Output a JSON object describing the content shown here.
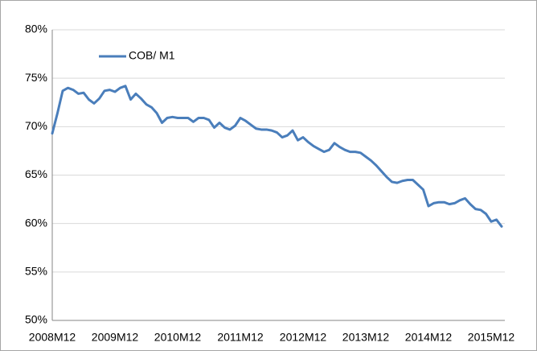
{
  "chart_data": {
    "type": "line",
    "categories": [
      "2008M12",
      null,
      null,
      null,
      null,
      null,
      null,
      null,
      null,
      null,
      null,
      null,
      "2009M12",
      null,
      null,
      null,
      null,
      null,
      null,
      null,
      null,
      null,
      null,
      null,
      "2010M12",
      null,
      null,
      null,
      null,
      null,
      null,
      null,
      null,
      null,
      null,
      null,
      "2011M12",
      null,
      null,
      null,
      null,
      null,
      null,
      null,
      null,
      null,
      null,
      null,
      "2012M12",
      null,
      null,
      null,
      null,
      null,
      null,
      null,
      null,
      null,
      null,
      null,
      "2013M12",
      null,
      null,
      null,
      null,
      null,
      null,
      null,
      null,
      null,
      null,
      null,
      "2014M12",
      null,
      null,
      null,
      null,
      null,
      null,
      null,
      null,
      null,
      null,
      null,
      "2015M12",
      null,
      null
    ],
    "series": [
      {
        "name": "COB/ M1",
        "color": "#4a7ebb",
        "values": [
          69.3,
          71.4,
          73.7,
          74.0,
          73.8,
          73.4,
          73.5,
          72.8,
          72.4,
          72.9,
          73.7,
          73.8,
          73.6,
          74.0,
          74.2,
          72.8,
          73.4,
          72.9,
          72.3,
          72.0,
          71.4,
          70.4,
          70.9,
          71.0,
          70.9,
          70.9,
          70.9,
          70.5,
          70.9,
          70.9,
          70.7,
          69.9,
          70.4,
          69.9,
          69.7,
          70.1,
          70.9,
          70.6,
          70.2,
          69.8,
          69.7,
          69.7,
          69.6,
          69.4,
          68.9,
          69.1,
          69.6,
          68.6,
          68.9,
          68.4,
          68.0,
          67.7,
          67.4,
          67.6,
          68.3,
          67.9,
          67.6,
          67.4,
          67.4,
          67.3,
          66.9,
          66.5,
          66.0,
          65.4,
          64.8,
          64.3,
          64.2,
          64.4,
          64.5,
          64.5,
          64.0,
          63.5,
          61.8,
          62.1,
          62.2,
          62.2,
          62.0,
          62.1,
          62.4,
          62.6,
          62.0,
          61.5,
          61.4,
          61.0,
          60.2,
          60.4,
          59.7
        ]
      }
    ],
    "ylim": [
      50,
      80
    ],
    "yticks": [
      {
        "value": 50,
        "label": "50%"
      },
      {
        "value": 55,
        "label": "55%"
      },
      {
        "value": 60,
        "label": "60%"
      },
      {
        "value": 65,
        "label": "65%"
      },
      {
        "value": 70,
        "label": "70%"
      },
      {
        "value": 75,
        "label": "75%"
      },
      {
        "value": 80,
        "label": "80%"
      }
    ],
    "grid": true,
    "legend": "top-left"
  }
}
